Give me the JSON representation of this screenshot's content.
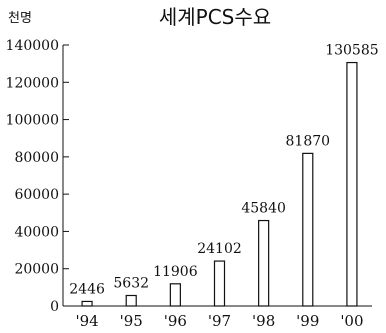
{
  "chart_data": {
    "type": "bar",
    "title": "세계PCS수요",
    "unit_label": "천명",
    "categories": [
      "'94",
      "'95",
      "'96",
      "'97",
      "'98",
      "'99",
      "'00"
    ],
    "values": [
      2446,
      5632,
      11906,
      24102,
      45840,
      81870,
      130585
    ],
    "data_labels": [
      "2446",
      "5632",
      "11906",
      "24102",
      "45840",
      "81870",
      "130585"
    ],
    "yticks": [
      0,
      20000,
      40000,
      60000,
      80000,
      100000,
      120000,
      140000
    ],
    "ytick_labels": [
      "0",
      "20000",
      "40000",
      "60000",
      "80000",
      "100000",
      "120000",
      "140000"
    ],
    "ylim": [
      0,
      140000
    ],
    "xlabel": "",
    "ylabel": "",
    "grid": false,
    "legend": "none",
    "colors": {
      "bar_fill": "#ffffff",
      "bar_stroke": "#111111",
      "axis": "#111111",
      "text": "#111111"
    }
  }
}
